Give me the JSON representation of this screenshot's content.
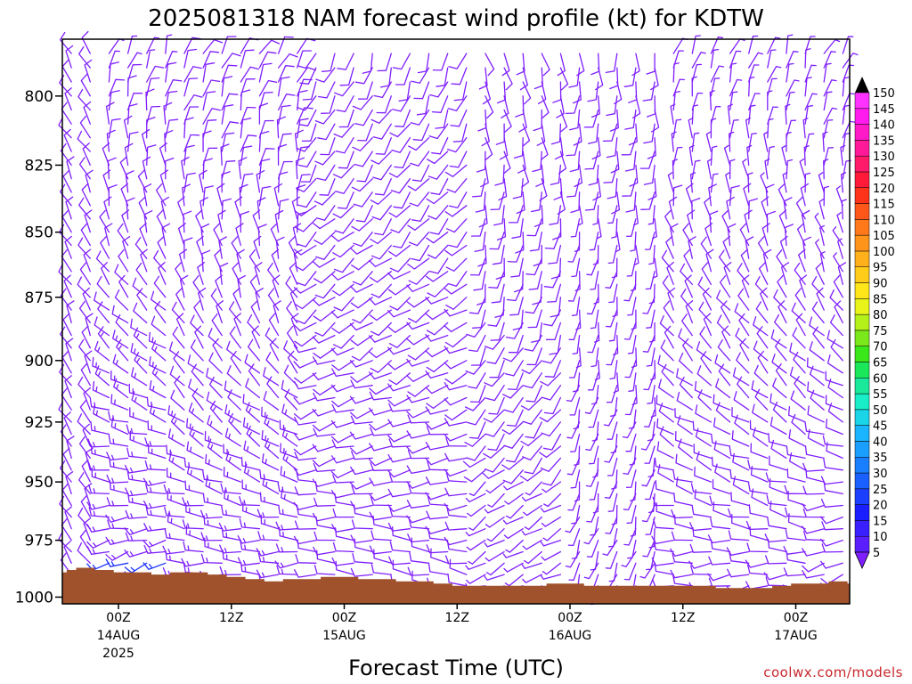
{
  "colors": {
    "barb": "#7f1fff",
    "barb_strong": "#1a33ff",
    "terrain": "#a0522d",
    "axis": "#000000",
    "credit": "#c8282d"
  },
  "credit": "coolwx.com/models",
  "chart_data": {
    "type": "wind-barb",
    "title": "2025081318 NAM forecast wind profile (kt) for KDTW",
    "xlabel": "Forecast Time (UTC)",
    "ylabel": "",
    "y_axis": {
      "scale": "log-pressure",
      "ylim": [
        1003,
        780
      ],
      "ticks": [
        800,
        825,
        850,
        875,
        900,
        925,
        950,
        975,
        1000
      ]
    },
    "x_axis": {
      "unit": "hours since 2025-08-13 18Z",
      "xlim": [
        0,
        78
      ],
      "ticks": [
        {
          "hour": 6,
          "label": "00Z",
          "day": "14AUG",
          "year": "2025"
        },
        {
          "hour": 18,
          "label": "12Z"
        },
        {
          "hour": 30,
          "label": "00Z",
          "day": "15AUG"
        },
        {
          "hour": 42,
          "label": "12Z"
        },
        {
          "hour": 54,
          "label": "00Z",
          "day": "16AUG"
        },
        {
          "hour": 66,
          "label": "12Z"
        },
        {
          "hour": 78,
          "label": "00Z",
          "day": "17AUG"
        }
      ]
    },
    "colorbar": {
      "unit": "kt",
      "levels": [
        5,
        10,
        15,
        20,
        25,
        30,
        35,
        40,
        45,
        50,
        55,
        60,
        65,
        70,
        75,
        80,
        85,
        90,
        95,
        100,
        105,
        110,
        115,
        120,
        125,
        130,
        135,
        140,
        145,
        150
      ],
      "colors": [
        "#7f1fff",
        "#5b1fff",
        "#3a1fff",
        "#1a1fff",
        "#1a3fff",
        "#1a5fff",
        "#1a7fff",
        "#1a9fff",
        "#1ab4ff",
        "#1ad4e8",
        "#1aeec8",
        "#1ae89a",
        "#1ae85a",
        "#3ae81a",
        "#7ae81a",
        "#b4f01a",
        "#e8f41a",
        "#ffe61a",
        "#ffcc1a",
        "#ffb01a",
        "#ff941a",
        "#ff781a",
        "#ff561a",
        "#ff321a",
        "#ff1a3a",
        "#ff1a6a",
        "#ff1a9a",
        "#ff1ac8",
        "#ff1aee",
        "#ff33ff"
      ]
    },
    "surface_pressure": {
      "hours": [
        0,
        1,
        2,
        3,
        4,
        6,
        8,
        10,
        12,
        14,
        16,
        18,
        20,
        22,
        24,
        26,
        28,
        30,
        32,
        34,
        36,
        38,
        40,
        42,
        44,
        46,
        48,
        50,
        52,
        54,
        56,
        58,
        60,
        62,
        64,
        66,
        68,
        70,
        72,
        74,
        76,
        78,
        80,
        82,
        84
      ],
      "values": [
        989,
        988,
        987,
        987,
        988,
        989,
        989,
        990,
        989,
        989,
        990,
        991,
        992,
        993,
        992,
        992,
        991,
        991,
        992,
        992,
        993,
        993,
        994,
        995,
        995,
        995,
        995,
        995,
        994,
        994,
        995,
        995,
        995,
        995,
        995,
        995,
        995,
        996,
        996,
        996,
        995,
        994,
        994,
        993,
        994
      ]
    },
    "barb_field": {
      "time_step_hours": 1,
      "pressure_levels_hpa": [
        785,
        790,
        795,
        800,
        805,
        810,
        815,
        820,
        825,
        830,
        835,
        840,
        845,
        850,
        855,
        860,
        865,
        870,
        875,
        880,
        885,
        890,
        895,
        900,
        905,
        910,
        915,
        920,
        925,
        930,
        935,
        940,
        945,
        950,
        955,
        960,
        965,
        970,
        975,
        980,
        985,
        990,
        995,
        1000
      ],
      "regimes": [
        {
          "hours": [
            0,
            4
          ],
          "direction_deg": 330,
          "speed_kt": 8
        },
        {
          "hours": [
            5,
            12
          ],
          "direction_deg_upper": 20,
          "direction_deg_lower": 240,
          "speed_kt_upper": 7,
          "speed_kt_lower": 18
        },
        {
          "hours": [
            13,
            26
          ],
          "direction_deg_upper": 30,
          "direction_deg_lower": 260,
          "speed_kt_upper": 8,
          "speed_kt_lower": 15
        },
        {
          "hours": [
            27,
            44
          ],
          "direction_deg_upper": 200,
          "direction_deg_lower": 280,
          "speed_kt_upper": 8,
          "speed_kt_lower": 11
        },
        {
          "hours": [
            45,
            54
          ],
          "direction_deg_upper": 160,
          "direction_deg_lower": 250,
          "speed_kt_upper": 9,
          "speed_kt_lower": 7
        },
        {
          "hours": [
            55,
            64
          ],
          "direction_deg_upper": 180,
          "direction_deg_lower": 200,
          "speed_kt_upper": 8,
          "speed_kt_lower": 6
        },
        {
          "hours": [
            65,
            80
          ],
          "direction_deg_upper": 20,
          "direction_deg_lower": 260,
          "speed_kt_upper": 7,
          "speed_kt_lower": 9
        },
        {
          "hours": [
            81,
            84
          ],
          "direction_deg_upper": 30,
          "direction_deg_lower": 240,
          "speed_kt_upper": 6,
          "speed_kt_lower": 10
        }
      ]
    }
  }
}
